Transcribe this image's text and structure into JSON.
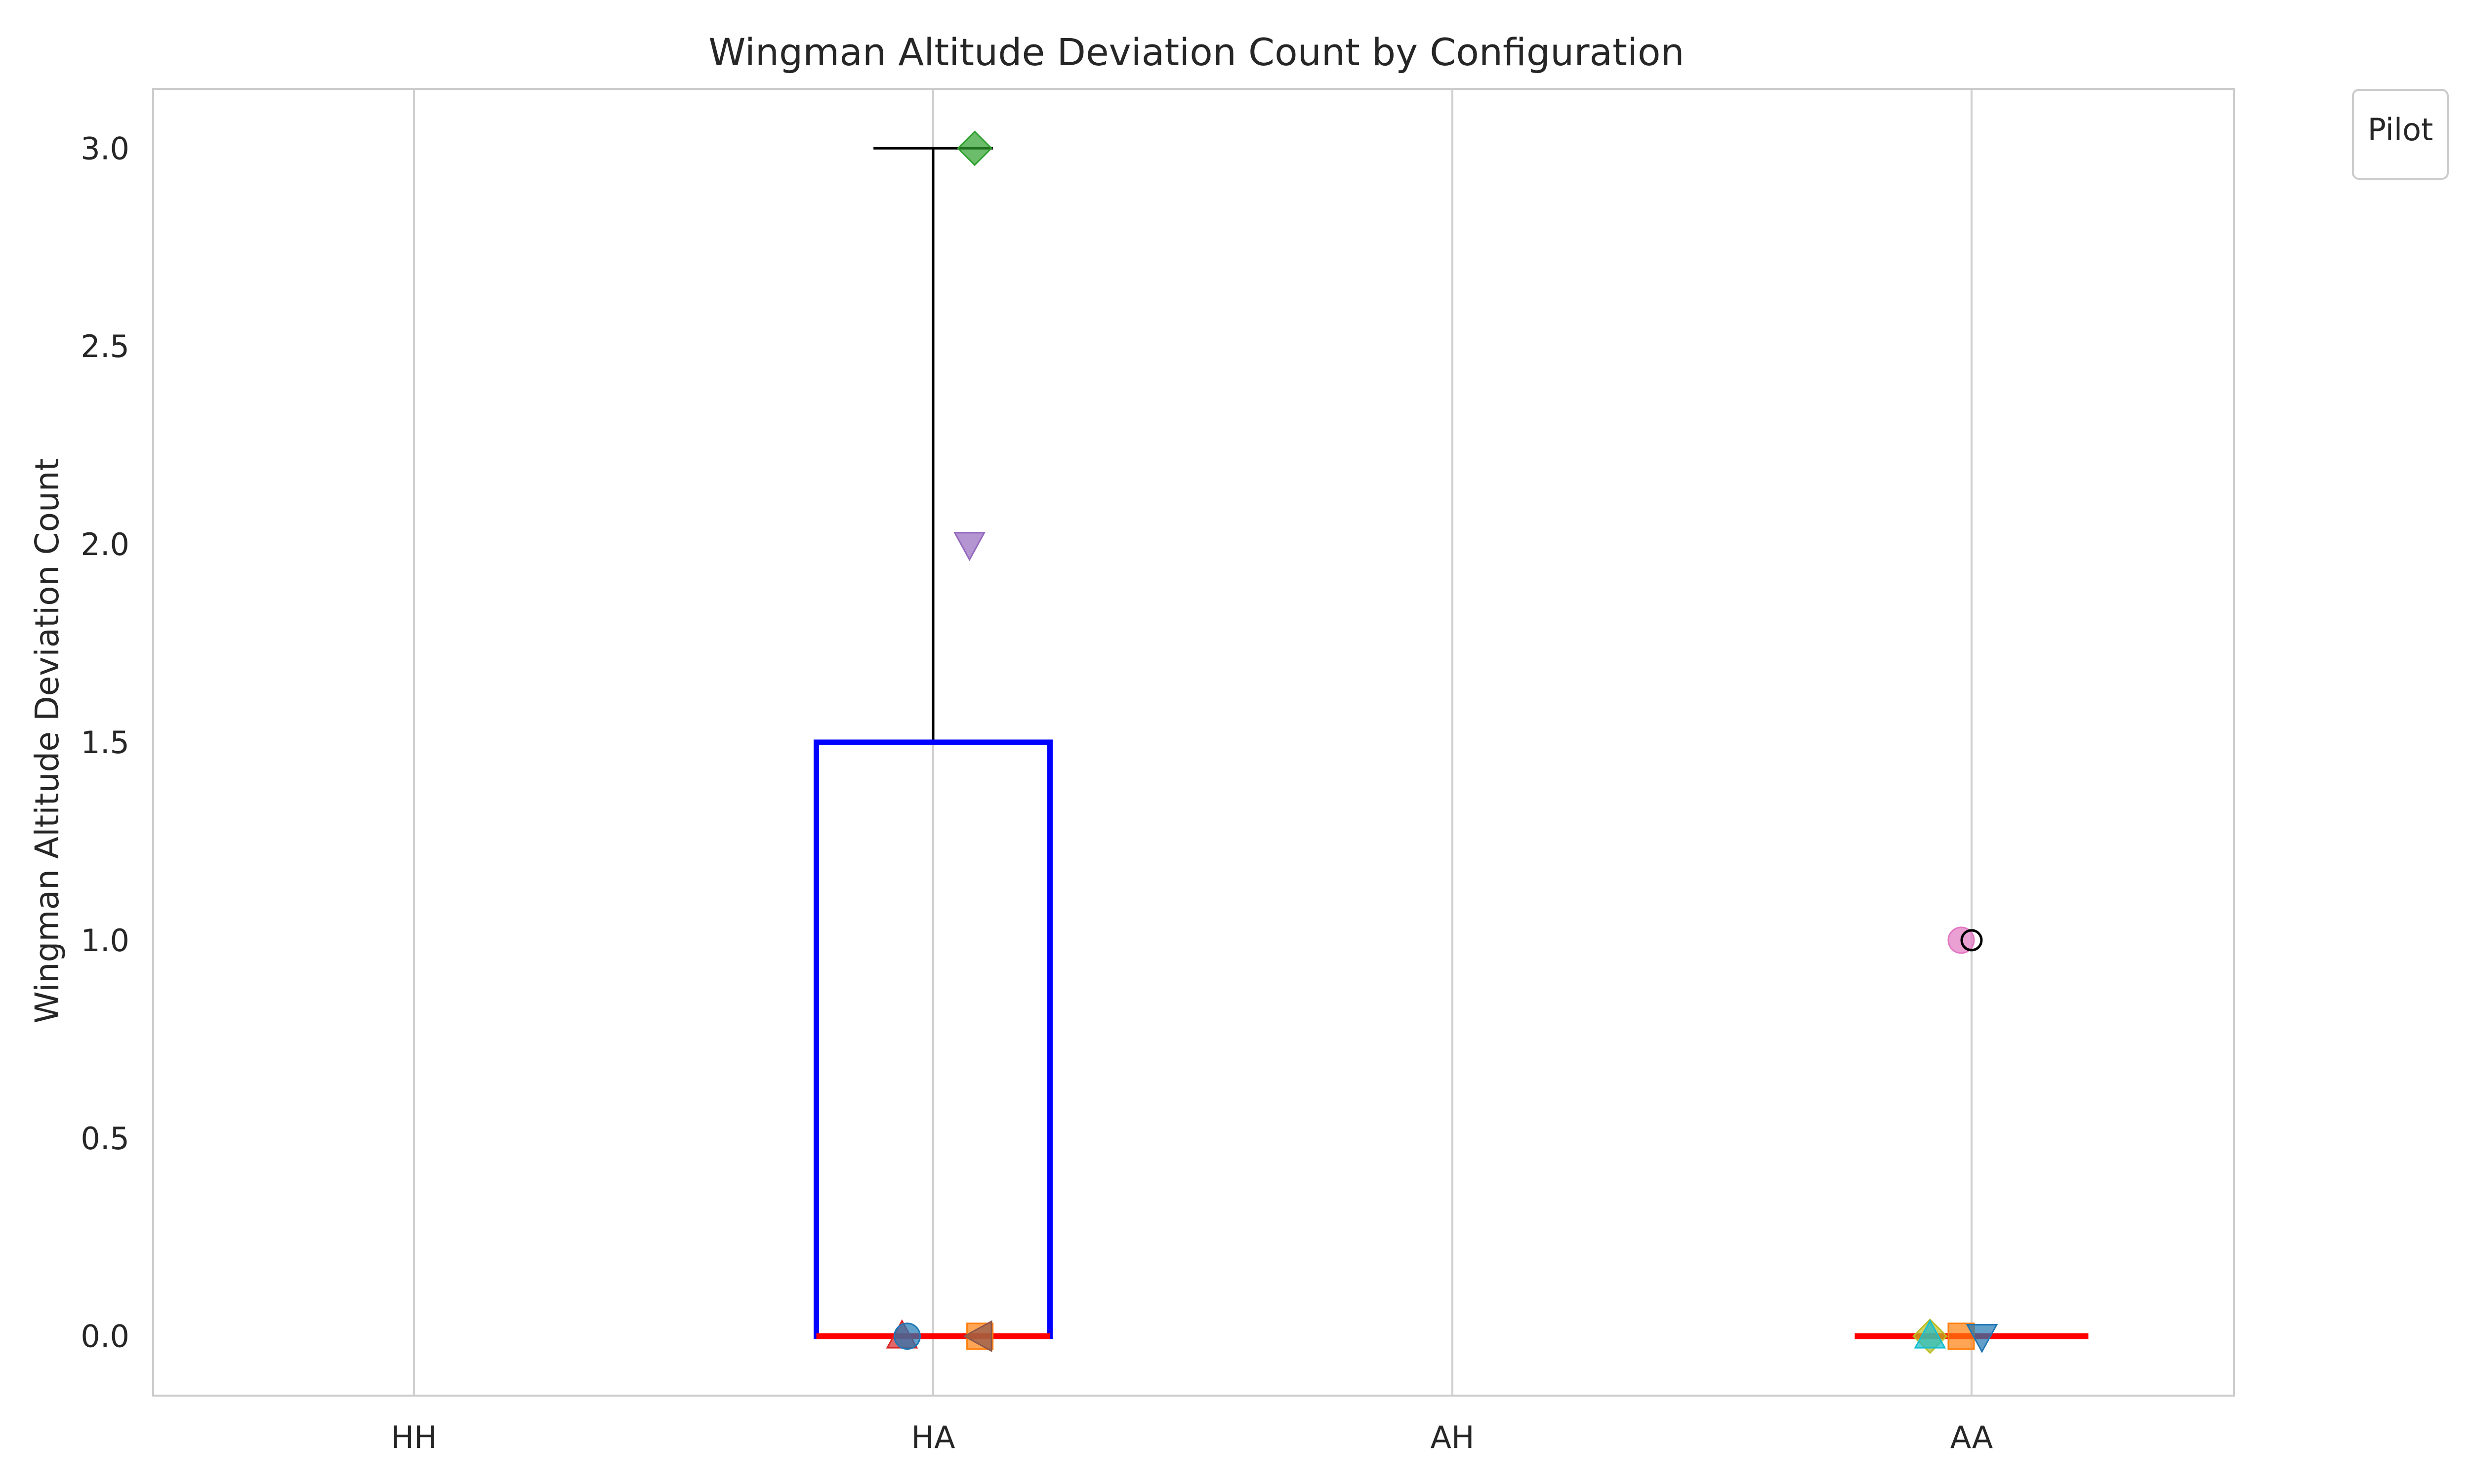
{
  "chart_data": {
    "type": "box",
    "title": "Wingman Altitude Deviation Count by Configuration",
    "xlabel": "",
    "ylabel": "Wingman Altitude Deviation Count",
    "categories": [
      "HH",
      "HA",
      "AH",
      "AA"
    ],
    "ylim": [
      -0.15,
      3.15
    ],
    "yticks": [
      0.0,
      0.5,
      1.0,
      1.5,
      2.0,
      2.5,
      3.0
    ],
    "ytick_labels": [
      "0.0",
      "0.5",
      "1.0",
      "1.5",
      "2.0",
      "2.5",
      "3.0"
    ],
    "grid": "vertical",
    "legend": {
      "title": "Pilot",
      "position": "upper-right outside",
      "entries": []
    },
    "boxes": [
      {
        "category": "HA",
        "q1": 0.0,
        "median": 0.0,
        "q3": 1.5,
        "whisker_low": 0.0,
        "whisker_high": 3.0,
        "outliers": []
      },
      {
        "category": "AA",
        "q1": 0.0,
        "median": 0.0,
        "q3": 0.0,
        "whisker_low": 0.0,
        "whisker_high": 0.0,
        "outliers": [
          1.0
        ]
      }
    ],
    "box_color": "#0000ff",
    "median_color": "#ff0000",
    "whisker_color": "#000000",
    "points": [
      {
        "category": "HA",
        "x_offset": -0.06,
        "y": 0.0,
        "marker": "triangle-up",
        "color": "#d62728"
      },
      {
        "category": "HA",
        "x_offset": -0.05,
        "y": 0.0,
        "marker": "circle",
        "color": "#1f77b4"
      },
      {
        "category": "HA",
        "x_offset": 0.09,
        "y": 0.0,
        "marker": "square",
        "color": "#ff7f0e"
      },
      {
        "category": "HA",
        "x_offset": 0.09,
        "y": 0.0,
        "marker": "triangle-left",
        "color": "#8c564b"
      },
      {
        "category": "HA",
        "x_offset": 0.08,
        "y": 3.0,
        "marker": "diamond",
        "color": "#2ca02c"
      },
      {
        "category": "HA",
        "x_offset": 0.07,
        "y": 2.0,
        "marker": "triangle-down",
        "color": "#9467bd"
      },
      {
        "category": "AA",
        "x_offset": -0.08,
        "y": 0.0,
        "marker": "diamond",
        "color": "#bcbd22"
      },
      {
        "category": "AA",
        "x_offset": -0.08,
        "y": 0.0,
        "marker": "triangle-up",
        "color": "#17becf"
      },
      {
        "category": "AA",
        "x_offset": -0.02,
        "y": 0.0,
        "marker": "square",
        "color": "#ff7f0e"
      },
      {
        "category": "AA",
        "x_offset": 0.02,
        "y": 0.0,
        "marker": "triangle-down",
        "color": "#1f77b4"
      },
      {
        "category": "AA",
        "x_offset": -0.02,
        "y": 1.0,
        "marker": "circle",
        "color": "#e377c2"
      }
    ]
  }
}
